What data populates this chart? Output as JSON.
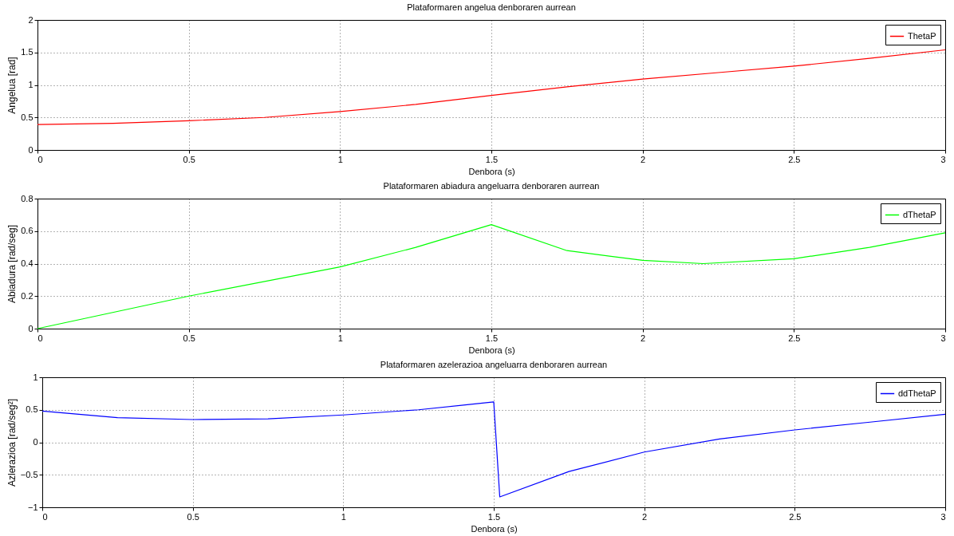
{
  "chart_data": [
    {
      "type": "line",
      "title": "Plataformaren angelua denboraren aurrean",
      "xlabel": "Denbora (s)",
      "ylabel": "Angelua [rad]",
      "x": [
        0,
        0.25,
        0.5,
        0.75,
        1,
        1.25,
        1.5,
        1.75,
        2,
        2.25,
        2.5,
        2.75,
        3
      ],
      "series": [
        {
          "name": "ThetaP",
          "color": "#ff0000",
          "values": [
            0.39,
            0.41,
            0.45,
            0.5,
            0.59,
            0.7,
            0.84,
            0.97,
            1.09,
            1.19,
            1.29,
            1.41,
            1.54
          ]
        }
      ],
      "xlim": [
        0,
        3
      ],
      "ylim": [
        0,
        2
      ],
      "xticks": [
        0,
        0.5,
        1,
        1.5,
        2,
        2.5,
        3
      ],
      "yticks": [
        0,
        0.5,
        1,
        1.5,
        2
      ],
      "grid": true,
      "legend": "top right"
    },
    {
      "type": "line",
      "title": "Plataformaren abiadura angeluarra denboraren aurrean",
      "xlabel": "Denbora (s)",
      "ylabel": "Abiadura [rad/seg]",
      "x": [
        0,
        0.5,
        1,
        1.25,
        1.5,
        1.75,
        2,
        2.2,
        2.5,
        2.75,
        3
      ],
      "series": [
        {
          "name": "dThetaP",
          "color": "#00ff00",
          "values": [
            0,
            0.2,
            0.38,
            0.5,
            0.64,
            0.48,
            0.42,
            0.4,
            0.43,
            0.5,
            0.59
          ]
        }
      ],
      "xlim": [
        0,
        3
      ],
      "ylim": [
        0,
        0.8
      ],
      "xticks": [
        0,
        0.5,
        1,
        1.5,
        2,
        2.5,
        3
      ],
      "yticks": [
        0,
        0.2,
        0.4,
        0.6,
        0.8
      ],
      "grid": true,
      "legend": "top right"
    },
    {
      "type": "line",
      "title": "Plataformaren azelerazioa angeluarra denboraren aurrean",
      "xlabel": "Denbora (s)",
      "ylabel": "Azlerazioa [rad/seg²]",
      "x": [
        0,
        0.25,
        0.5,
        0.75,
        1,
        1.25,
        1.5,
        1.52,
        1.75,
        2,
        2.25,
        2.5,
        2.75,
        3
      ],
      "series": [
        {
          "name": "ddThetaP",
          "color": "#0000ff",
          "values": [
            0.48,
            0.38,
            0.35,
            0.36,
            0.42,
            0.5,
            0.62,
            -0.84,
            -0.45,
            -0.15,
            0.05,
            0.19,
            0.31,
            0.43
          ]
        }
      ],
      "xlim": [
        0,
        3
      ],
      "ylim": [
        -1,
        1
      ],
      "xticks": [
        0,
        0.5,
        1,
        1.5,
        2,
        2.5,
        3
      ],
      "yticks": [
        -1,
        -0.5,
        0,
        0.5,
        1
      ],
      "grid": true,
      "legend": "top right"
    }
  ]
}
